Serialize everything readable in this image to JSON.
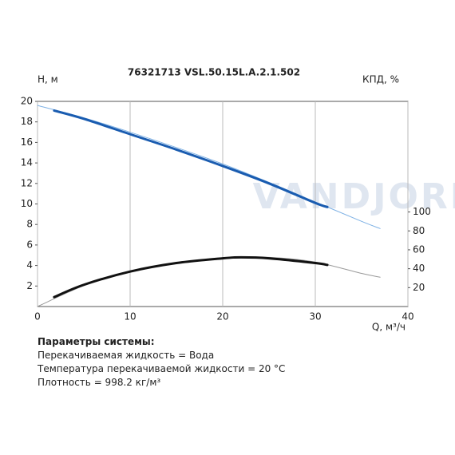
{
  "chart_data": {
    "type": "line",
    "title": "76321713 VSL.50.15L.A.2.1.502",
    "y_label": "H, м",
    "y2_label": "КПД, %",
    "x_label": "Q, м³/ч",
    "watermark": "VANDJORD",
    "xlim": [
      0,
      40
    ],
    "xticks": [
      0,
      10,
      20,
      30,
      40
    ],
    "ylim": [
      0,
      20
    ],
    "yticks": [
      2,
      4,
      6,
      8,
      10,
      12,
      14,
      16,
      18,
      20
    ],
    "y2lim": [
      0,
      217
    ],
    "y2ticks": [
      20,
      40,
      60,
      80,
      100
    ],
    "grid": true,
    "series": [
      {
        "color": "#7fb2e5",
        "width": 1,
        "x": [
          0,
          5,
          10,
          15,
          20,
          25,
          30,
          35,
          37
        ],
        "values": [
          19.6,
          18.4,
          17.0,
          15.5,
          13.9,
          12.1,
          10.2,
          8.3,
          7.6
        ]
      },
      {
        "color": "#1a5cb0",
        "width": 3,
        "x": [
          1.8,
          5,
          10,
          15,
          20,
          25,
          30,
          31.3
        ],
        "values": [
          19.1,
          18.3,
          16.8,
          15.3,
          13.7,
          12.0,
          10.1,
          9.7
        ]
      },
      {
        "color": "#999999",
        "width": 1,
        "axis": "y2",
        "x": [
          0,
          5,
          10,
          15,
          20,
          25,
          30,
          35,
          37
        ],
        "values": [
          0,
          22,
          37,
          46,
          51,
          52,
          47,
          35,
          31
        ]
      },
      {
        "color": "#111111",
        "width": 3,
        "axis": "y2",
        "x": [
          1.8,
          5,
          10,
          15,
          20,
          22,
          25,
          30,
          31.3
        ],
        "values": [
          10,
          23,
          37,
          46,
          51,
          52,
          51,
          46,
          44
        ]
      }
    ]
  },
  "params": {
    "heading": "Параметры системы:",
    "lines": [
      "Перекачиваемая жидкость = Вода",
      "Температура перекачиваемой жидкости = 20 °C",
      "Плотность = 998.2 кг/м³"
    ]
  }
}
